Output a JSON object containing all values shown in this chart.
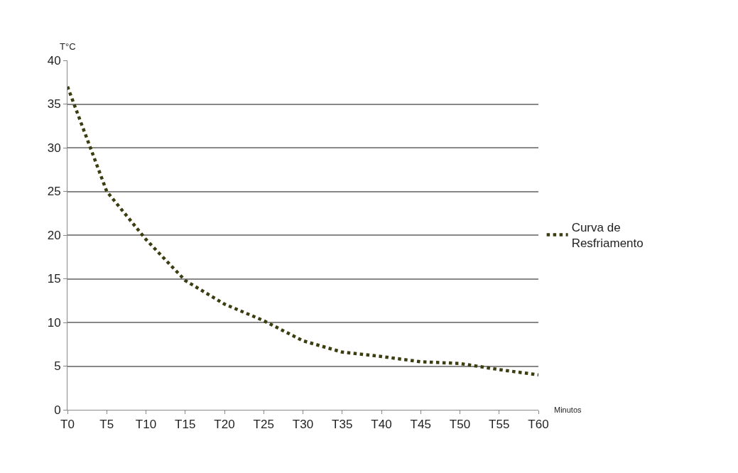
{
  "chart_data": {
    "type": "line",
    "ylabel": "T°C",
    "xlabel": "Minutos",
    "categories": [
      "T0",
      "T5",
      "T10",
      "T15",
      "T20",
      "T25",
      "T30",
      "T35",
      "T40",
      "T45",
      "T50",
      "T55",
      "T60"
    ],
    "series": [
      {
        "name": "Curva de Resfriamento",
        "color": "#3d3d12",
        "values": [
          37,
          25,
          19.5,
          14.8,
          12.1,
          10.2,
          7.9,
          6.6,
          6.1,
          5.5,
          5.3,
          4.6,
          4.0
        ]
      }
    ],
    "ylim": [
      0,
      40
    ],
    "yticks": [
      0,
      5,
      10,
      15,
      20,
      25,
      30,
      35,
      40
    ],
    "grid": "y",
    "legend": "right",
    "line_style": "dotted",
    "marker": "none"
  }
}
